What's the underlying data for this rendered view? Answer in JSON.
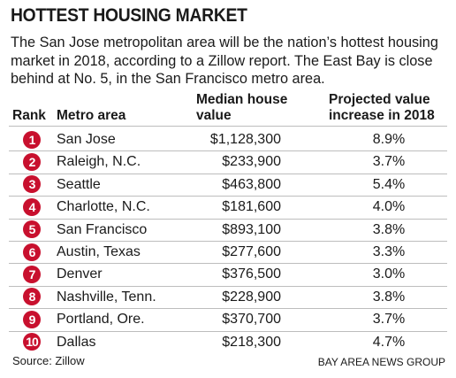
{
  "header": {
    "title": "HOTTEST HOUSING MARKET",
    "description": "The San Jose metropolitan area will be the nation’s hottest housing market in 2018, according to a Zillow report. The East Bay is close behind at No. 5, in the San Francisco metro area."
  },
  "table": {
    "columns": [
      "Rank",
      "Metro area",
      "Median house value",
      "Projected value increase in 2018"
    ],
    "rows": [
      [
        1,
        "San Jose",
        "$1,128,300",
        "8.9%"
      ],
      [
        2,
        "Raleigh, N.C.",
        "$233,900",
        "3.7%"
      ],
      [
        3,
        "Seattle",
        "$463,800",
        "5.4%"
      ],
      [
        4,
        "Charlotte, N.C.",
        "$181,600",
        "4.0%"
      ],
      [
        5,
        "San Francisco",
        "$893,100",
        "3.8%"
      ],
      [
        6,
        "Austin, Texas",
        "$277,600",
        "3.3%"
      ],
      [
        7,
        "Denver",
        "$376,500",
        "3.0%"
      ],
      [
        8,
        "Nashville, Tenn.",
        "$228,900",
        "3.8%"
      ],
      [
        9,
        "Portland, Ore.",
        "$370,700",
        "3.7%"
      ],
      [
        10,
        "Dallas",
        "$218,300",
        "4.7%"
      ]
    ]
  },
  "footer": {
    "source": "Source: Zillow",
    "credit": "BAY AREA NEWS GROUP"
  }
}
